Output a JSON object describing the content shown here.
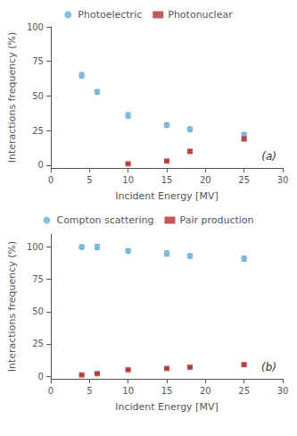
{
  "chart_data": [
    {
      "type": "scatter",
      "annotation": "(a)",
      "xlabel": "Incident Energy [MV]",
      "ylabel": "Interactions frequency (%)",
      "xlim": [
        0,
        30
      ],
      "ylim": [
        -2,
        100
      ],
      "xticks": [
        0,
        5,
        10,
        15,
        20,
        25,
        30
      ],
      "yticks": [
        0,
        25,
        50,
        75,
        100
      ],
      "grid": false,
      "legend": "upper center",
      "series": [
        {
          "name": "Photoelectric",
          "color": "#6baed6",
          "marker": "circle",
          "x": [
            4,
            6,
            10,
            15,
            18,
            25
          ],
          "values": [
            65,
            53,
            36,
            29,
            26,
            22
          ],
          "yerr": [
            2,
            1.5,
            2,
            1.5,
            1.5,
            1.5
          ]
        },
        {
          "name": "Photonuclear",
          "color": "#b03030",
          "marker": "square",
          "x": [
            10,
            15,
            18,
            25
          ],
          "values": [
            1,
            3,
            10,
            19
          ],
          "yerr": [
            0.5,
            0.5,
            1,
            1
          ]
        }
      ]
    },
    {
      "type": "scatter",
      "annotation": "(b)",
      "xlabel": "Incident Energy [MV]",
      "ylabel": "Interactions frequency (%)",
      "xlim": [
        0,
        30
      ],
      "ylim": [
        -2,
        110
      ],
      "xticks": [
        0,
        5,
        10,
        15,
        20,
        25,
        30
      ],
      "yticks": [
        0,
        25,
        50,
        75,
        100
      ],
      "grid": false,
      "legend": "upper center",
      "series": [
        {
          "name": "Compton scattering",
          "color": "#6baed6",
          "marker": "circle",
          "x": [
            4,
            6,
            10,
            15,
            18,
            25
          ],
          "values": [
            100,
            100,
            97,
            95,
            93,
            91
          ],
          "yerr": [
            1.5,
            2,
            1.5,
            2,
            1.5,
            2
          ]
        },
        {
          "name": "Pair production",
          "color": "#b03030",
          "marker": "square",
          "x": [
            4,
            6,
            10,
            15,
            18,
            25
          ],
          "values": [
            1,
            2,
            5,
            6,
            7,
            9
          ],
          "yerr": [
            0.5,
            0.5,
            0.5,
            0.5,
            0.5,
            0.8
          ]
        }
      ]
    }
  ]
}
